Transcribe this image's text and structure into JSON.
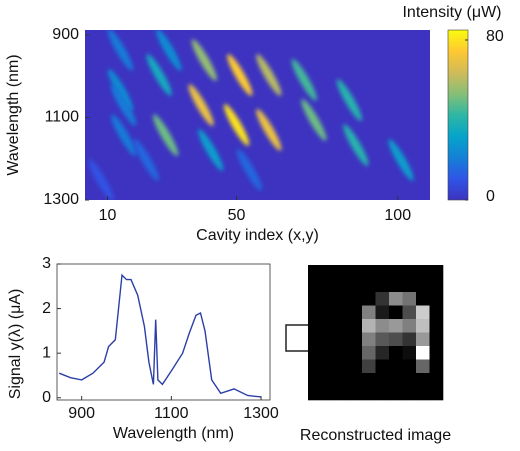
{
  "chart_data": [
    {
      "type": "heatmap",
      "xlabel": "Cavity index (x,y)",
      "ylabel": "Wavelength (nm)",
      "colorbar_label": "Intensity (μW)",
      "x": [
        14,
        29,
        40,
        51,
        60,
        71,
        85,
        14,
        26,
        15,
        39,
        50,
        60,
        74,
        87,
        101,
        15,
        28,
        42,
        22,
        8,
        54
      ],
      "y": [
        936,
        936,
        961,
        997,
        997,
        1009,
        1058,
        1033,
        997,
        1070,
        1070,
        1118,
        1130,
        1106,
        1167,
        1203,
        1143,
        1143,
        1179,
        1203,
        1252,
        1227
      ],
      "values": [
        20,
        25,
        55,
        75,
        60,
        45,
        40,
        25,
        35,
        20,
        70,
        80,
        70,
        50,
        40,
        30,
        20,
        50,
        30,
        15,
        10,
        15
      ],
      "xlim": [
        3,
        110
      ],
      "xticks": [
        10,
        50,
        100
      ],
      "ylim": [
        888,
        1300
      ],
      "yticks": [
        900,
        1100,
        1300
      ],
      "invert_y": true,
      "clim": [
        0,
        85
      ],
      "cticks": [
        0,
        80
      ],
      "colormap": [
        "#3d33c0",
        "#2f55e6",
        "#1481d6",
        "#06a4ca",
        "#2eb7a4",
        "#87bf77",
        "#d1bb59",
        "#fec832",
        "#f9fb0e"
      ]
    },
    {
      "type": "line",
      "xlabel": "Wavelength (nm)",
      "ylabel": "Signal y(λ) (μA)",
      "x": [
        850,
        875,
        900,
        925,
        950,
        960,
        975,
        990,
        1000,
        1010,
        1025,
        1040,
        1050,
        1060,
        1065,
        1070,
        1080,
        1100,
        1125,
        1140,
        1155,
        1165,
        1175,
        1190,
        1210,
        1240,
        1270,
        1300
      ],
      "series": [
        {
          "color": "#2c3fa8",
          "values": [
            0.55,
            0.45,
            0.4,
            0.55,
            0.8,
            1.15,
            1.3,
            2.75,
            2.65,
            2.65,
            2.3,
            1.6,
            0.8,
            0.3,
            1.75,
            0.4,
            0.3,
            0.6,
            1.0,
            1.45,
            1.85,
            1.9,
            1.5,
            0.4,
            0.1,
            0.2,
            0.05,
            0.02
          ]
        }
      ],
      "xlim": [
        845,
        1320
      ],
      "xticks": [
        900,
        1100,
        1300
      ],
      "ylim": [
        -0.05,
        3
      ],
      "yticks": [
        0,
        1,
        2,
        3
      ]
    },
    {
      "type": "image",
      "title": "Reconstructed image",
      "pixels": [
        [
          0,
          0,
          0,
          0,
          0,
          0,
          0,
          0,
          0,
          0
        ],
        [
          0,
          0,
          0,
          0,
          0,
          0,
          0,
          0,
          0,
          0
        ],
        [
          0,
          0,
          0,
          0,
          0,
          0.2,
          0.55,
          0.45,
          0,
          0
        ],
        [
          0,
          0,
          0,
          0,
          0.5,
          0.1,
          0,
          0.3,
          0.8,
          0
        ],
        [
          0,
          0,
          0,
          0,
          0.7,
          0.55,
          0.6,
          0.5,
          0.75,
          0
        ],
        [
          0,
          0,
          0,
          0,
          0.5,
          0.35,
          0.3,
          0.2,
          0.6,
          0
        ],
        [
          0,
          0,
          0,
          0,
          0.4,
          0.15,
          0,
          0.05,
          1,
          0
        ],
        [
          0,
          0,
          0,
          0,
          0.25,
          0,
          0,
          0,
          0.4,
          0
        ],
        [
          0,
          0,
          0,
          0,
          0,
          0,
          0,
          0,
          0,
          0
        ],
        [
          0,
          0,
          0,
          0,
          0,
          0,
          0,
          0,
          0,
          0
        ]
      ]
    }
  ]
}
